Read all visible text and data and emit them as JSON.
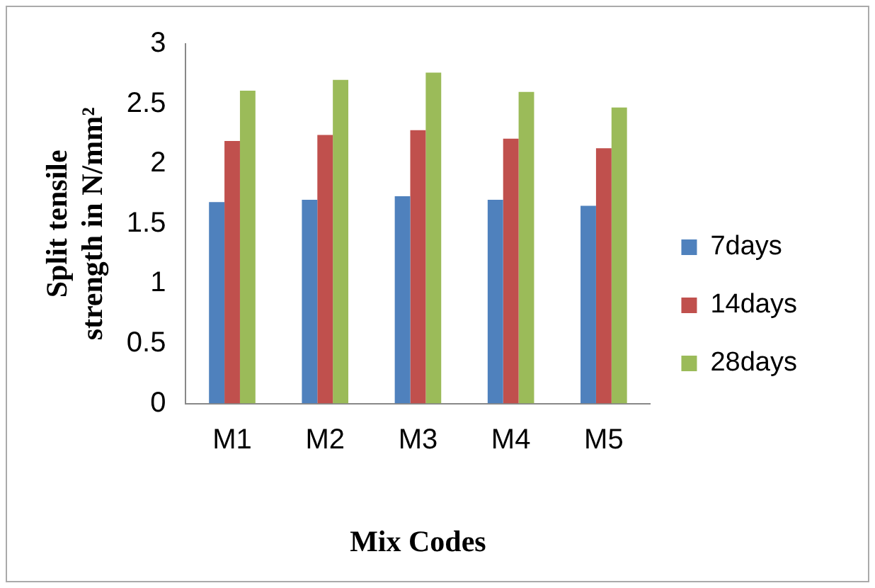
{
  "chart_data": {
    "type": "bar",
    "xlabel": "Mix Codes",
    "ylabel": "Split tensile strength in N/mm²",
    "categories": [
      "M1",
      "M2",
      "M3",
      "M4",
      "M5"
    ],
    "series": [
      {
        "name": "7days",
        "color": "#4f81bd",
        "values": [
          1.68,
          1.7,
          1.73,
          1.7,
          1.65
        ]
      },
      {
        "name": "14days",
        "color": "#c0504d",
        "values": [
          2.19,
          2.24,
          2.28,
          2.21,
          2.13
        ]
      },
      {
        "name": "28days",
        "color": "#9bbb59",
        "values": [
          2.61,
          2.7,
          2.76,
          2.6,
          2.47
        ]
      }
    ],
    "ylim": [
      0,
      3
    ],
    "yticks": [
      0,
      0.5,
      1,
      1.5,
      2,
      2.5,
      3
    ],
    "grid": false,
    "legend": "right"
  }
}
